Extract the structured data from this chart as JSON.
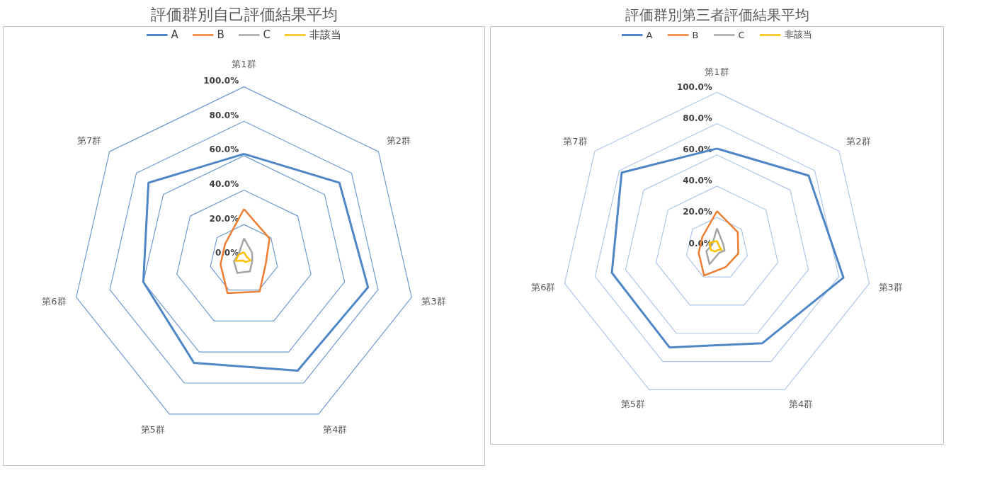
{
  "chart_data": [
    {
      "type": "radar",
      "title": "評価群別自己評価結果平均",
      "categories": [
        "第1群",
        "第2群",
        "第3群",
        "第4群",
        "第5群",
        "第6群",
        "第7群"
      ],
      "series": [
        {
          "name": "A",
          "color": "#4f86c6",
          "values": [
            61,
            71,
            74,
            72,
            67,
            60,
            71
          ]
        },
        {
          "name": "B",
          "color": "#ed7d31",
          "values": [
            29,
            19,
            13,
            21,
            22,
            14,
            14
          ]
        },
        {
          "name": "C",
          "color": "#a5a5a5",
          "values": [
            12,
            6,
            5,
            8,
            9,
            6,
            4
          ]
        },
        {
          "name": "非該当",
          "color": "#ffc000",
          "values": [
            4,
            2,
            4,
            2,
            1,
            5,
            4
          ]
        }
      ],
      "ylim": [
        0,
        100
      ],
      "yticks": [
        {
          "value": 0,
          "label": "0.0%"
        },
        {
          "value": 20,
          "label": "20.0%"
        },
        {
          "value": 40,
          "label": "40.0%"
        },
        {
          "value": 60,
          "label": "60.0%"
        },
        {
          "value": 80,
          "label": "80.0%"
        },
        {
          "value": 100,
          "label": "100.0%"
        }
      ],
      "grid": true,
      "legend": "top"
    },
    {
      "type": "radar",
      "title": "評価群別第三者評価結果平均",
      "categories": [
        "第1群",
        "第2群",
        "第3群",
        "第4群",
        "第5群",
        "第6群",
        "第7群"
      ],
      "series": [
        {
          "name": "A",
          "color": "#4f86c6",
          "values": [
            64,
            75,
            83,
            67,
            70,
            69,
            78
          ]
        },
        {
          "name": "B",
          "color": "#ed7d31",
          "values": [
            24,
            17,
            14,
            13,
            19,
            12,
            12
          ]
        },
        {
          "name": "C",
          "color": "#a5a5a5",
          "values": [
            13,
            5,
            5,
            3,
            11,
            7,
            4
          ]
        },
        {
          "name": "非該当",
          "color": "#ffc000",
          "values": [
            5,
            2,
            3,
            1,
            2,
            4,
            6
          ]
        }
      ],
      "ylim": [
        0,
        100
      ],
      "yticks": [
        {
          "value": 0,
          "label": "0.0%"
        },
        {
          "value": 20,
          "label": "20.0%"
        },
        {
          "value": 40,
          "label": "40.0%"
        },
        {
          "value": 60,
          "label": "60.0%"
        },
        {
          "value": 80,
          "label": "80.0%"
        },
        {
          "value": 100,
          "label": "100.0%"
        }
      ],
      "grid": true,
      "legend": "top"
    }
  ]
}
